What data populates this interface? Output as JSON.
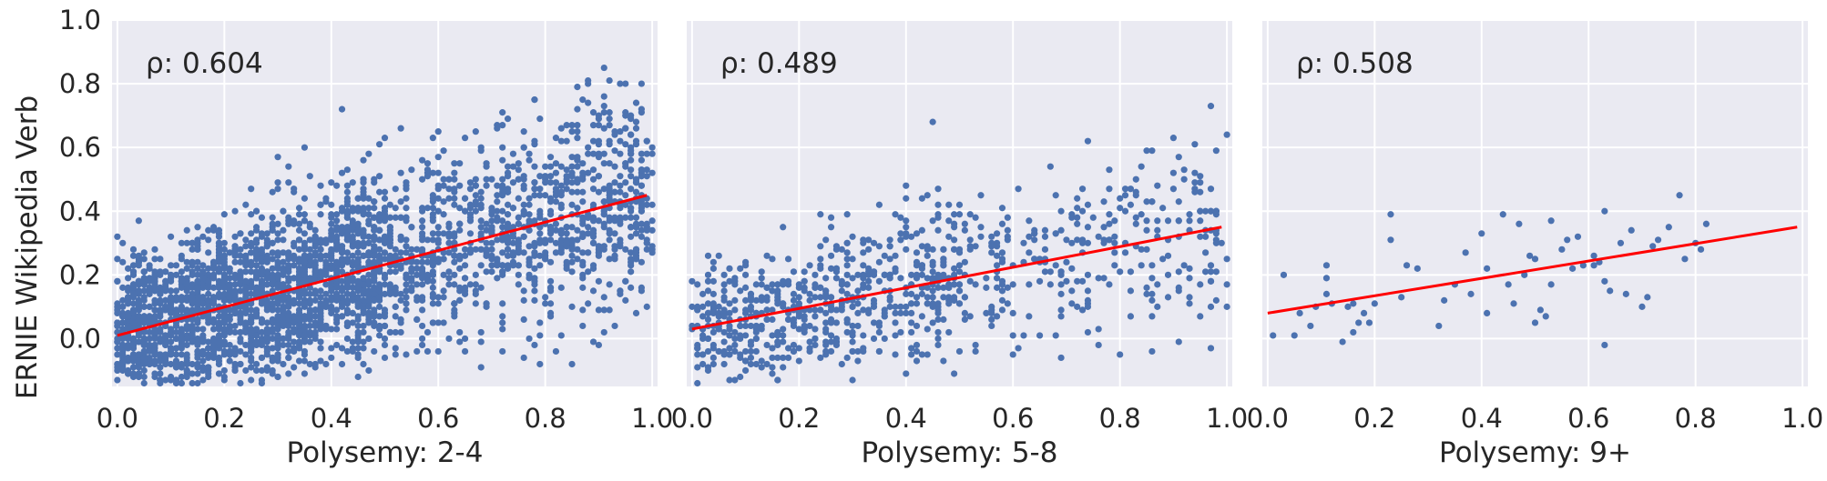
{
  "figure": {
    "ylabel": "ERNIE Wikipedia Verb"
  },
  "chart_data": [
    {
      "type": "scatter",
      "xlabel": "Polysemy: 2-4",
      "ylabel": "ERNIE Wikipedia Verb",
      "annotation": "ρ: 0.604",
      "xlim": [
        -0.01,
        1.01
      ],
      "ylim": [
        -0.15,
        1.0
      ],
      "xticks": [
        "0.0",
        "0.2",
        "0.4",
        "0.6",
        "0.8",
        "1.0"
      ],
      "yticks": [
        "1.0",
        "0.8",
        "0.6",
        "0.4",
        "0.2",
        "0.0"
      ],
      "grid": true,
      "point_color": "#4c72b0",
      "line_color": "#ff0000",
      "fit_line": {
        "x": [
          0.0,
          0.99
        ],
        "y": [
          0.01,
          0.45
        ]
      },
      "point_count_approx": 3000,
      "y_noise_sd": 0.14
    },
    {
      "type": "scatter",
      "xlabel": "Polysemy: 5-8",
      "annotation": "ρ: 0.489",
      "xlim": [
        -0.01,
        1.01
      ],
      "ylim": [
        -0.15,
        1.0
      ],
      "xticks": [
        "0.0",
        "0.2",
        "0.4",
        "0.6",
        "0.8",
        "1.0"
      ],
      "grid": true,
      "point_color": "#4c72b0",
      "line_color": "#ff0000",
      "fit_line": {
        "x": [
          0.0,
          0.99
        ],
        "y": [
          0.03,
          0.35
        ]
      },
      "point_count_approx": 900,
      "y_noise_sd": 0.12
    },
    {
      "type": "scatter",
      "xlabel": "Polysemy: 9+",
      "annotation": "ρ: 0.508",
      "xlim": [
        -0.01,
        1.01
      ],
      "ylim": [
        -0.15,
        1.0
      ],
      "xticks": [
        "0.0",
        "0.2",
        "0.4",
        "0.6",
        "0.8",
        "1.0"
      ],
      "grid": true,
      "point_color": "#4c72b0",
      "line_color": "#ff0000",
      "fit_line": {
        "x": [
          0.0,
          0.99
        ],
        "y": [
          0.08,
          0.35
        ]
      },
      "points": [
        [
          0.01,
          0.01
        ],
        [
          0.03,
          0.2
        ],
        [
          0.05,
          0.01
        ],
        [
          0.06,
          0.08
        ],
        [
          0.08,
          0.04
        ],
        [
          0.09,
          0.1
        ],
        [
          0.11,
          0.14
        ],
        [
          0.11,
          0.19
        ],
        [
          0.11,
          0.23
        ],
        [
          0.12,
          0.11
        ],
        [
          0.14,
          -0.01
        ],
        [
          0.15,
          0.1
        ],
        [
          0.16,
          0.02
        ],
        [
          0.16,
          0.11
        ],
        [
          0.17,
          0.05
        ],
        [
          0.18,
          0.08
        ],
        [
          0.19,
          0.05
        ],
        [
          0.2,
          0.11
        ],
        [
          0.23,
          0.39
        ],
        [
          0.23,
          0.31
        ],
        [
          0.25,
          0.13
        ],
        [
          0.26,
          0.23
        ],
        [
          0.28,
          0.22
        ],
        [
          0.32,
          0.04
        ],
        [
          0.33,
          0.12
        ],
        [
          0.35,
          0.17
        ],
        [
          0.37,
          0.27
        ],
        [
          0.38,
          0.14
        ],
        [
          0.4,
          0.33
        ],
        [
          0.41,
          0.22
        ],
        [
          0.41,
          0.08
        ],
        [
          0.44,
          0.39
        ],
        [
          0.45,
          0.17
        ],
        [
          0.46,
          0.11
        ],
        [
          0.47,
          0.36
        ],
        [
          0.48,
          0.2
        ],
        [
          0.49,
          0.26
        ],
        [
          0.5,
          0.25
        ],
        [
          0.5,
          0.05
        ],
        [
          0.51,
          0.09
        ],
        [
          0.52,
          0.07
        ],
        [
          0.53,
          0.17
        ],
        [
          0.53,
          0.37
        ],
        [
          0.55,
          0.28
        ],
        [
          0.56,
          0.31
        ],
        [
          0.57,
          0.22
        ],
        [
          0.58,
          0.32
        ],
        [
          0.59,
          0.23
        ],
        [
          0.61,
          0.23
        ],
        [
          0.61,
          0.26
        ],
        [
          0.62,
          0.24
        ],
        [
          0.63,
          0.18
        ],
        [
          0.63,
          0.4
        ],
        [
          0.63,
          -0.02
        ],
        [
          0.64,
          0.15
        ],
        [
          0.66,
          0.3
        ],
        [
          0.67,
          0.14
        ],
        [
          0.68,
          0.34
        ],
        [
          0.7,
          0.1
        ],
        [
          0.71,
          0.13
        ],
        [
          0.72,
          0.29
        ],
        [
          0.73,
          0.31
        ],
        [
          0.75,
          0.35
        ],
        [
          0.77,
          0.45
        ],
        [
          0.78,
          0.25
        ],
        [
          0.8,
          0.3
        ],
        [
          0.81,
          0.28
        ],
        [
          0.82,
          0.36
        ]
      ]
    }
  ]
}
